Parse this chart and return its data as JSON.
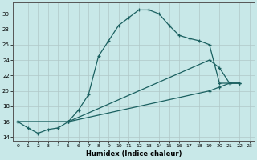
{
  "xlabel": "Humidex (Indice chaleur)",
  "bg_color": "#c8e8e8",
  "grid_color": "#b0c8c8",
  "line_color": "#1a6060",
  "xlim": [
    -0.5,
    23.5
  ],
  "ylim": [
    13.5,
    31.5
  ],
  "xticks": [
    0,
    1,
    2,
    3,
    4,
    5,
    6,
    7,
    8,
    9,
    10,
    11,
    12,
    13,
    14,
    15,
    16,
    17,
    18,
    19,
    20,
    21,
    22,
    23
  ],
  "yticks": [
    14,
    16,
    18,
    20,
    22,
    24,
    26,
    28,
    30
  ],
  "line1_x": [
    0,
    1,
    2,
    3,
    4,
    5,
    6,
    7,
    8,
    9,
    10,
    11,
    12,
    13,
    14,
    15,
    16,
    17,
    18,
    19,
    20,
    21,
    22
  ],
  "line1_y": [
    16,
    15.2,
    14.5,
    15.0,
    15.2,
    16.0,
    17.5,
    19.5,
    24.5,
    26.5,
    28.5,
    29.5,
    30.5,
    30.5,
    30.0,
    28.5,
    27.2,
    26.8,
    26.5,
    26.0,
    21.0,
    21.0,
    21.0
  ],
  "line2_x": [
    0,
    5,
    19,
    20,
    21,
    22
  ],
  "line2_y": [
    16,
    16,
    24,
    23.0,
    21.0,
    21.0
  ],
  "line3_x": [
    0,
    5,
    19,
    20,
    21,
    22
  ],
  "line3_y": [
    16,
    16,
    20.0,
    20.5,
    21.0,
    21.0
  ]
}
